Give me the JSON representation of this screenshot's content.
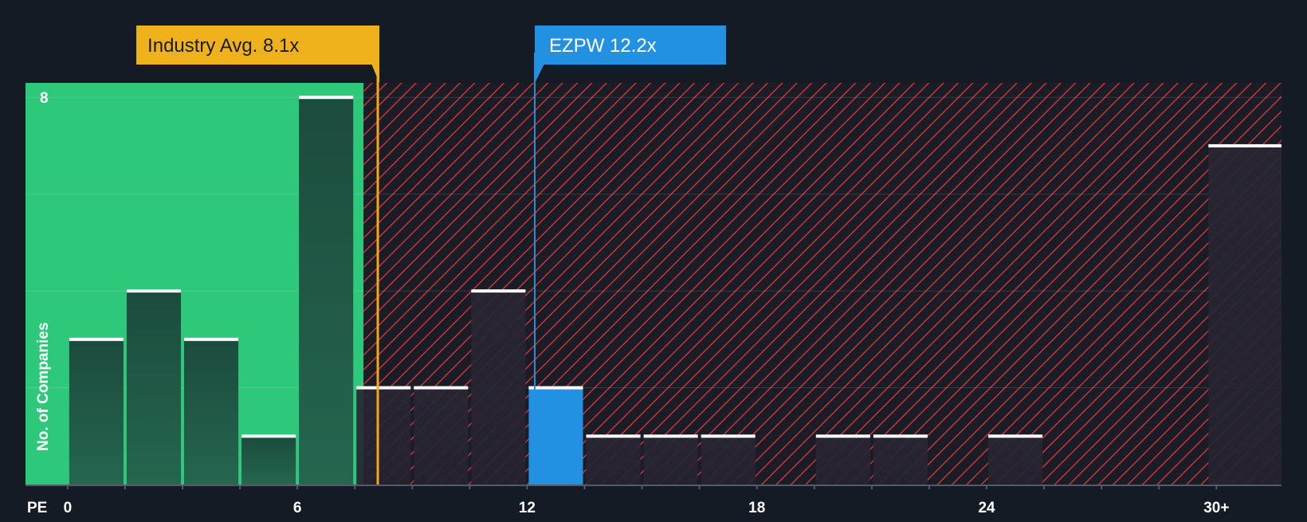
{
  "chart_data": {
    "type": "bar",
    "xlabel": "PE",
    "ylabel": "No. of Companies",
    "bin_width": 1.5,
    "bins": [
      {
        "x": 0.75,
        "value": 3
      },
      {
        "x": 2.25,
        "value": 4
      },
      {
        "x": 3.75,
        "value": 3
      },
      {
        "x": 5.25,
        "value": 1
      },
      {
        "x": 6.75,
        "value": 8
      },
      {
        "x": 8.25,
        "value": 2
      },
      {
        "x": 9.75,
        "value": 2
      },
      {
        "x": 11.25,
        "value": 4
      },
      {
        "x": 12.75,
        "value": 2,
        "highlight": true
      },
      {
        "x": 14.25,
        "value": 1
      },
      {
        "x": 15.75,
        "value": 1
      },
      {
        "x": 17.25,
        "value": 1
      },
      {
        "x": 20.25,
        "value": 1
      },
      {
        "x": 21.75,
        "value": 1
      },
      {
        "x": 24.75,
        "value": 1
      },
      {
        "x": 30.0,
        "value": 7,
        "label": "30+"
      }
    ],
    "x_ticks": [
      {
        "value": 0,
        "label": "0"
      },
      {
        "value": 6,
        "label": "6"
      },
      {
        "value": 12,
        "label": "12"
      },
      {
        "value": 18,
        "label": "18"
      },
      {
        "value": 24,
        "label": "24"
      },
      {
        "value": 30,
        "label": "30+"
      }
    ],
    "y_ticks": [
      {
        "value": 8,
        "label": "8"
      }
    ],
    "xlim": [
      -1.1,
      31.7
    ],
    "ylim": [
      0,
      8.3
    ],
    "industry_avg": {
      "value": 8.1,
      "label": "Industry Avg. 8.1x"
    },
    "company": {
      "ticker": "EZPW",
      "value": 12.2,
      "label": "EZPW 12.2x"
    },
    "colors": {
      "background": "#151b24",
      "fair_zone": "#2ec87a",
      "bar_in_zone": "#1f4d3f",
      "bar_out_zone": "#2a2a35",
      "bar_cap": "#ffffff",
      "hatch_line": "#c8333a",
      "industry_line": "#f2a81d",
      "industry_box": "#f0b21c",
      "company_color": "#2391e2",
      "axis_line": "#555b66"
    }
  }
}
